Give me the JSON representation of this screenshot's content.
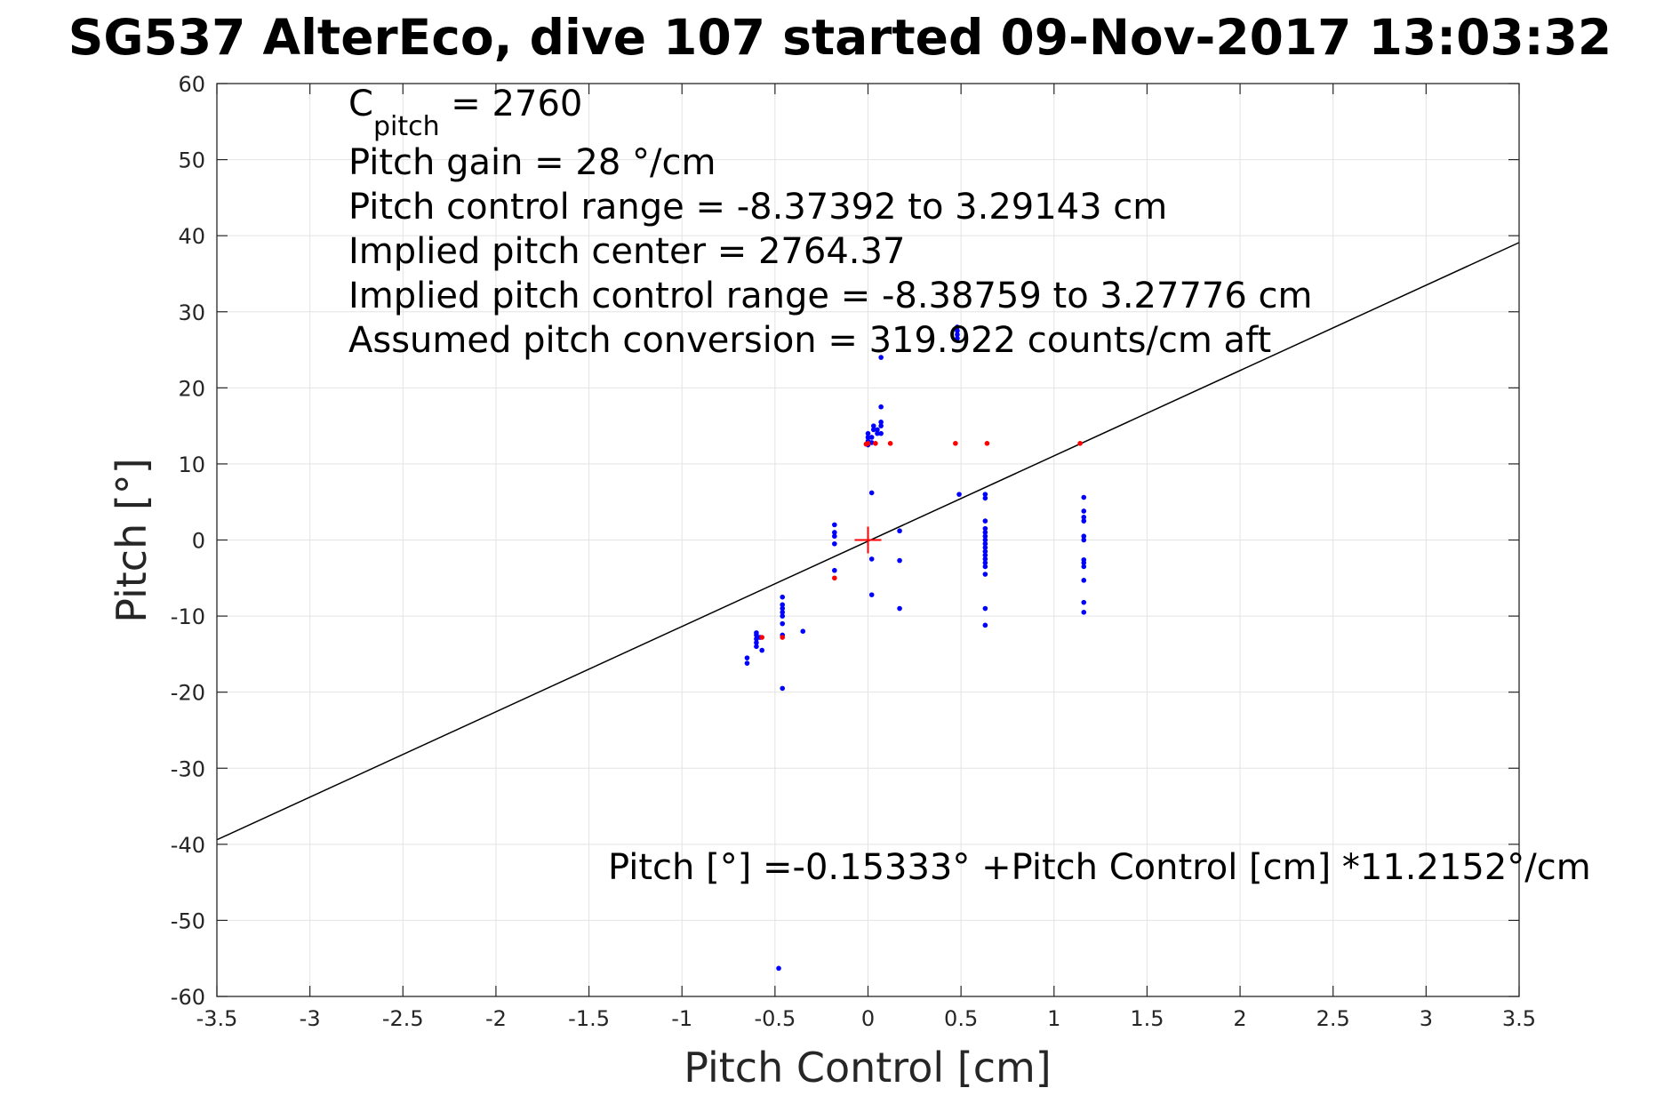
{
  "chart_data": {
    "type": "scatter",
    "title": "SG537 AlterEco, dive 107 started 09-Nov-2017 13:03:32",
    "xlabel": "Pitch Control [cm]",
    "ylabel": "Pitch [°]",
    "xlim": [
      -3.5,
      3.5
    ],
    "ylim": [
      -60,
      60
    ],
    "xticks": [
      "-3.5",
      "-3",
      "-2.5",
      "-2",
      "-1.5",
      "-1",
      "-0.5",
      "0",
      "0.5",
      "1",
      "1.5",
      "2",
      "2.5",
      "3",
      "3.5"
    ],
    "yticks": [
      "60",
      "50",
      "40",
      "30",
      "20",
      "10",
      "0",
      "-10",
      "-20",
      "-30",
      "-40",
      "-50",
      "-60"
    ],
    "grid": true,
    "annotations": {
      "c_pitch_main": "C",
      "c_pitch_sub": "pitch",
      "c_pitch_value": " = 2760",
      "lines": [
        "Pitch gain = 28 °/cm",
        "Pitch control range = -8.37392 to 3.29143 cm",
        "Implied pitch center = 2764.37",
        "Implied pitch control range = -8.38759 to 3.27776 cm",
        "Assumed pitch conversion = 319.922 counts/cm aft"
      ],
      "fit_equation": "Pitch [°] =-0.15333° +Pitch Control [cm] *11.2152°/cm"
    },
    "fit_line": {
      "intercept": -0.15333,
      "slope": 11.2152,
      "color": "#000000"
    },
    "center_marker": {
      "x": 0,
      "y": 0,
      "color": "#ff0000"
    },
    "series": [
      {
        "color": "#0000ff",
        "points": [
          [
            -0.65,
            -15.5
          ],
          [
            -0.65,
            -16.2
          ],
          [
            -0.6,
            -12.5
          ],
          [
            -0.6,
            -13.0
          ],
          [
            -0.6,
            -13.5
          ],
          [
            -0.6,
            -14.0
          ],
          [
            -0.57,
            -14.5
          ],
          [
            -0.58,
            -12.8
          ],
          [
            -0.6,
            -12.2
          ],
          [
            -0.46,
            -7.5
          ],
          [
            -0.46,
            -8.5
          ],
          [
            -0.46,
            -9.0
          ],
          [
            -0.46,
            -9.5
          ],
          [
            -0.46,
            -10.0
          ],
          [
            -0.46,
            -11.0
          ],
          [
            -0.46,
            -12.5
          ],
          [
            -0.46,
            -19.5
          ],
          [
            -0.48,
            -56.3
          ],
          [
            -0.35,
            -12.0
          ],
          [
            -0.18,
            2.0
          ],
          [
            -0.18,
            1.0
          ],
          [
            -0.18,
            0.5
          ],
          [
            -0.18,
            -0.5
          ],
          [
            -0.18,
            -4.0
          ],
          [
            0.0,
            12.5
          ],
          [
            0.0,
            13.0
          ],
          [
            0.0,
            13.5
          ],
          [
            0.0,
            14.0
          ],
          [
            0.02,
            12.8
          ],
          [
            0.02,
            13.5
          ],
          [
            0.03,
            14.5
          ],
          [
            0.03,
            15.0
          ],
          [
            0.05,
            14.0
          ],
          [
            0.05,
            14.5
          ],
          [
            0.07,
            14.0
          ],
          [
            0.07,
            15.0
          ],
          [
            0.07,
            15.5
          ],
          [
            0.07,
            17.5
          ],
          [
            0.07,
            24.0
          ],
          [
            0.02,
            6.2
          ],
          [
            0.02,
            -2.5
          ],
          [
            0.02,
            -7.2
          ],
          [
            0.17,
            1.2
          ],
          [
            0.17,
            -2.7
          ],
          [
            0.17,
            -9.0
          ],
          [
            0.48,
            26.5
          ],
          [
            0.48,
            27.0
          ],
          [
            0.48,
            27.5
          ],
          [
            0.48,
            28.0
          ],
          [
            0.49,
            6.0
          ],
          [
            0.63,
            6.0
          ],
          [
            0.63,
            5.5
          ],
          [
            0.63,
            2.5
          ],
          [
            0.63,
            1.5
          ],
          [
            0.63,
            1.0
          ],
          [
            0.63,
            0.5
          ],
          [
            0.63,
            0.0
          ],
          [
            0.63,
            -0.5
          ],
          [
            0.63,
            -1.0
          ],
          [
            0.63,
            -1.5
          ],
          [
            0.63,
            -2.0
          ],
          [
            0.63,
            -2.5
          ],
          [
            0.63,
            -3.0
          ],
          [
            0.63,
            -3.5
          ],
          [
            0.63,
            -4.5
          ],
          [
            0.63,
            -9.0
          ],
          [
            0.63,
            -11.2
          ],
          [
            1.16,
            5.6
          ],
          [
            1.16,
            3.8
          ],
          [
            1.16,
            3.0
          ],
          [
            1.16,
            2.5
          ],
          [
            1.16,
            0.5
          ],
          [
            1.16,
            0.0
          ],
          [
            1.16,
            -2.6
          ],
          [
            1.16,
            -3.0
          ],
          [
            1.16,
            -3.5
          ],
          [
            1.16,
            -5.3
          ],
          [
            1.16,
            -8.2
          ],
          [
            1.16,
            -9.5
          ]
        ]
      },
      {
        "color": "#ff0000",
        "points": [
          [
            -0.57,
            -12.8
          ],
          [
            -0.46,
            -12.8
          ],
          [
            -0.18,
            -5.0
          ],
          [
            -0.01,
            12.6
          ],
          [
            0.0,
            12.7
          ],
          [
            0.04,
            12.7
          ],
          [
            0.12,
            12.7
          ],
          [
            0.47,
            12.7
          ],
          [
            0.64,
            12.7
          ],
          [
            1.14,
            12.7
          ]
        ]
      }
    ]
  }
}
